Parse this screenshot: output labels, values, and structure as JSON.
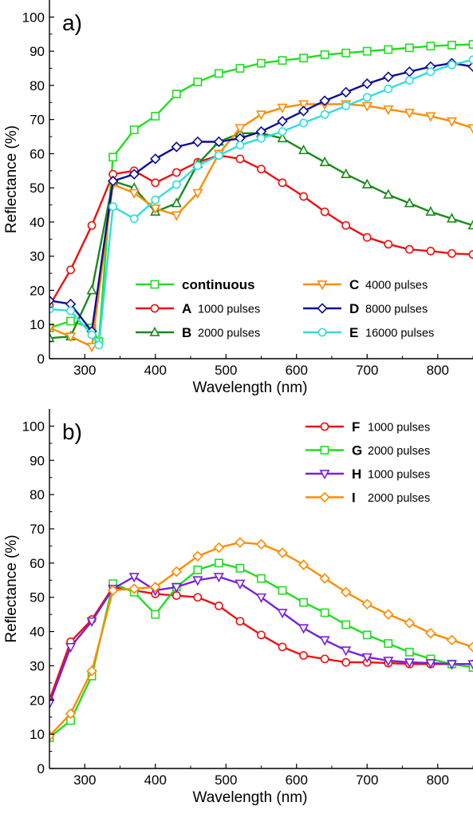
{
  "chart_data": [
    {
      "type": "line",
      "panel_label": "a)",
      "xlabel": "Wavelength (nm)",
      "ylabel": "Reflectance (%)",
      "xlim": [
        250,
        850
      ],
      "ylim": [
        0,
        105
      ],
      "xticks": [
        300,
        400,
        500,
        600,
        700,
        800
      ],
      "yticks": [
        0,
        10,
        20,
        30,
        40,
        50,
        60,
        70,
        80,
        90,
        100
      ],
      "legend_position": "lower-right",
      "legend_columns": 2,
      "series": [
        {
          "name": "continuous",
          "letter": "",
          "color": "#22dd22",
          "marker": "square",
          "x": [
            250,
            280,
            310,
            320,
            340,
            370,
            400,
            430,
            460,
            490,
            520,
            550,
            580,
            610,
            640,
            670,
            700,
            730,
            760,
            790,
            820,
            850
          ],
          "y": [
            9,
            11,
            9,
            5,
            59,
            67,
            71,
            77.5,
            81,
            83.5,
            85,
            86.5,
            87.3,
            88,
            89,
            89.5,
            90,
            90.5,
            91,
            91.5,
            91.8,
            92
          ]
        },
        {
          "name": "1000 pulses",
          "letter": "A",
          "color": "#ee1111",
          "marker": "circle",
          "x": [
            250,
            280,
            310,
            340,
            370,
            400,
            430,
            460,
            490,
            520,
            550,
            580,
            610,
            640,
            670,
            700,
            730,
            760,
            790,
            820,
            850
          ],
          "y": [
            15.5,
            26,
            39,
            54,
            55,
            51.5,
            54.5,
            57.5,
            59.5,
            58.5,
            55.5,
            51.5,
            47.5,
            43,
            39,
            35.5,
            33.5,
            32,
            31.5,
            30.8,
            30.5
          ]
        },
        {
          "name": "2000 pulses",
          "letter": "B",
          "color": "#1a8a1a",
          "marker": "triangle-up",
          "x": [
            250,
            280,
            310,
            340,
            370,
            400,
            430,
            460,
            490,
            520,
            550,
            580,
            610,
            640,
            670,
            700,
            730,
            760,
            790,
            820,
            850
          ],
          "y": [
            6,
            6.5,
            20,
            52,
            50,
            43,
            45.5,
            57,
            63.5,
            66,
            66,
            64.5,
            61,
            57.5,
            54,
            51,
            48,
            45.5,
            43,
            41,
            39
          ]
        },
        {
          "name": "4000 pulses",
          "letter": "C",
          "color": "#ff8c00",
          "marker": "triangle-down",
          "x": [
            250,
            280,
            310,
            340,
            370,
            400,
            430,
            460,
            490,
            520,
            550,
            580,
            610,
            640,
            670,
            700,
            730,
            760,
            790,
            820,
            850
          ],
          "y": [
            9,
            6.5,
            3.5,
            51,
            48.5,
            44,
            42,
            48.5,
            60,
            67.5,
            71.5,
            73.5,
            74.5,
            74.5,
            74.5,
            74,
            73,
            72,
            71,
            69.5,
            67.5
          ]
        },
        {
          "name": "8000 pulses",
          "letter": "D",
          "color": "#0d0d99",
          "marker": "diamond",
          "x": [
            250,
            280,
            310,
            340,
            370,
            400,
            430,
            460,
            490,
            520,
            550,
            580,
            610,
            640,
            670,
            700,
            730,
            760,
            790,
            820,
            850
          ],
          "y": [
            17,
            16,
            8,
            52,
            54,
            58.5,
            62,
            63.5,
            63.5,
            64.5,
            66.5,
            69.5,
            72.5,
            75.5,
            78,
            80.5,
            82.5,
            84,
            85.5,
            86.5,
            85.5
          ]
        },
        {
          "name": "16000 pulses",
          "letter": "E",
          "color": "#33dddd",
          "marker": "circle",
          "x": [
            250,
            280,
            310,
            320,
            340,
            370,
            400,
            430,
            460,
            490,
            520,
            550,
            580,
            610,
            640,
            670,
            700,
            730,
            760,
            790,
            820,
            850
          ],
          "y": [
            14.5,
            14,
            7,
            4,
            44.5,
            41,
            46.5,
            51,
            56.5,
            59.5,
            62.5,
            64.5,
            66.5,
            69,
            71.5,
            74,
            76.5,
            79,
            81.5,
            84,
            86,
            87.5
          ]
        }
      ]
    },
    {
      "type": "line",
      "panel_label": "b)",
      "xlabel": "Wavelength (nm)",
      "ylabel": "Reflectance (%)",
      "xlim": [
        250,
        850
      ],
      "ylim": [
        0,
        105
      ],
      "xticks": [
        300,
        400,
        500,
        600,
        700,
        800
      ],
      "yticks": [
        0,
        10,
        20,
        30,
        40,
        50,
        60,
        70,
        80,
        90,
        100
      ],
      "legend_position": "top-right",
      "legend_columns": 1,
      "series": [
        {
          "name": "1000 pulses",
          "letter": "F",
          "color": "#ee1111",
          "marker": "circle",
          "x": [
            250,
            280,
            310,
            340,
            370,
            400,
            430,
            460,
            490,
            520,
            550,
            580,
            610,
            640,
            670,
            700,
            730,
            760,
            790,
            820,
            850
          ],
          "y": [
            20,
            37,
            43.5,
            53,
            52,
            51,
            50.5,
            50,
            47.5,
            43,
            39,
            35.5,
            33,
            32,
            31,
            31,
            30.8,
            30.5,
            30.5,
            30.5,
            30.5
          ]
        },
        {
          "name": "2000 pulses",
          "letter": "G",
          "color": "#22dd22",
          "marker": "square",
          "x": [
            250,
            280,
            310,
            340,
            370,
            400,
            430,
            460,
            490,
            520,
            550,
            580,
            610,
            640,
            670,
            700,
            730,
            760,
            790,
            820,
            850
          ],
          "y": [
            9,
            14,
            27,
            54,
            51.5,
            45,
            53,
            58,
            60,
            58.5,
            55.5,
            52,
            48.5,
            45.5,
            42,
            39,
            36.5,
            34,
            32,
            30.5,
            29.5
          ]
        },
        {
          "name": "1000 pulses",
          "letter": "H",
          "color": "#7722dd",
          "marker": "triangle-down",
          "x": [
            250,
            280,
            310,
            340,
            370,
            400,
            430,
            460,
            490,
            520,
            550,
            580,
            610,
            640,
            670,
            700,
            730,
            760,
            790,
            820,
            850
          ],
          "y": [
            19,
            35.5,
            43,
            52.5,
            56,
            52,
            53,
            55,
            56,
            54,
            50,
            45.5,
            41,
            37.5,
            34.5,
            32.5,
            31.5,
            31,
            30.8,
            30.5,
            30.5
          ]
        },
        {
          "name": "2000 pulses",
          "letter": "I",
          "color": "#ff8c00",
          "marker": "diamond",
          "x": [
            250,
            280,
            310,
            340,
            370,
            400,
            430,
            460,
            490,
            520,
            550,
            580,
            610,
            640,
            670,
            700,
            730,
            760,
            790,
            820,
            850
          ],
          "y": [
            9.5,
            16,
            28.5,
            52,
            52.5,
            53,
            57.5,
            62,
            64.5,
            66,
            65.5,
            63,
            59.5,
            55.5,
            51.5,
            48,
            45,
            42.5,
            39.5,
            37.5,
            35.5
          ]
        }
      ]
    }
  ]
}
